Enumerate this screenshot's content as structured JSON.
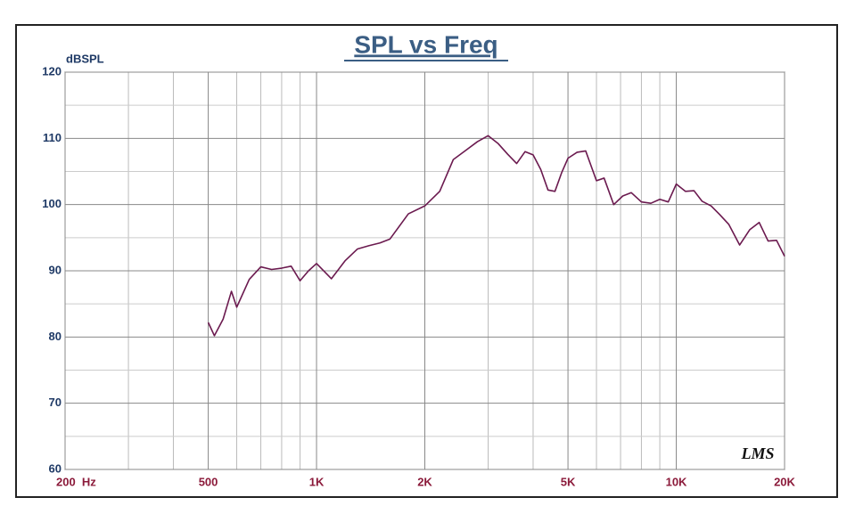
{
  "chart_data": {
    "type": "line",
    "title": "SPL vs Freq",
    "y_label": "dBSPL",
    "logo": "LMS",
    "xscale": "log",
    "grid": true,
    "x": [
      500,
      520,
      550,
      580,
      600,
      650,
      700,
      750,
      800,
      850,
      900,
      950,
      1000,
      1100,
      1200,
      1300,
      1400,
      1500,
      1600,
      1800,
      2000,
      2200,
      2400,
      2600,
      2800,
      3000,
      3200,
      3400,
      3600,
      3800,
      4000,
      4200,
      4400,
      4600,
      4800,
      5000,
      5300,
      5600,
      6000,
      6300,
      6700,
      7100,
      7500,
      8000,
      8500,
      9000,
      9500,
      10000,
      10600,
      11200,
      11800,
      12500,
      13200,
      14000,
      15000,
      16000,
      17000,
      18000,
      19000,
      20000
    ],
    "series": [
      {
        "name": "SPL",
        "color": "#6b1a4f",
        "values": [
          82.2,
          80.2,
          82.7,
          86.9,
          84.5,
          88.7,
          90.6,
          90.2,
          90.4,
          90.7,
          88.5,
          90.0,
          91.1,
          88.8,
          91.5,
          93.3,
          93.8,
          94.2,
          94.8,
          98.6,
          99.8,
          102.0,
          106.8,
          108.2,
          109.5,
          110.4,
          109.2,
          107.6,
          106.2,
          108.0,
          107.5,
          105.3,
          102.2,
          102.0,
          104.8,
          107.0,
          107.9,
          108.1,
          103.6,
          104.0,
          100.0,
          101.3,
          101.8,
          100.4,
          100.2,
          100.8,
          100.4,
          103.1,
          102.0,
          102.1,
          100.5,
          99.8,
          98.5,
          97.0,
          93.9,
          96.2,
          97.3,
          94.5,
          94.6,
          92.2
        ]
      }
    ],
    "xlim": [
      200,
      20000
    ],
    "xticks": [
      {
        "value": 200,
        "label": "200  Hz"
      },
      500,
      {
        "value": 1000,
        "label": "1K"
      },
      {
        "value": 2000,
        "label": "2K"
      },
      {
        "value": 5000,
        "label": "5K"
      },
      {
        "value": 10000,
        "label": "10K"
      },
      {
        "value": 20000,
        "label": "20K"
      }
    ],
    "xminorticks": [
      300,
      400,
      600,
      700,
      800,
      900,
      3000,
      4000,
      6000,
      7000,
      8000,
      9000
    ],
    "ylim": [
      60,
      120
    ],
    "yticks": [
      60,
      70,
      80,
      90,
      100,
      110,
      120
    ],
    "yminorticks": [
      65,
      75,
      85,
      95,
      105,
      115
    ]
  }
}
